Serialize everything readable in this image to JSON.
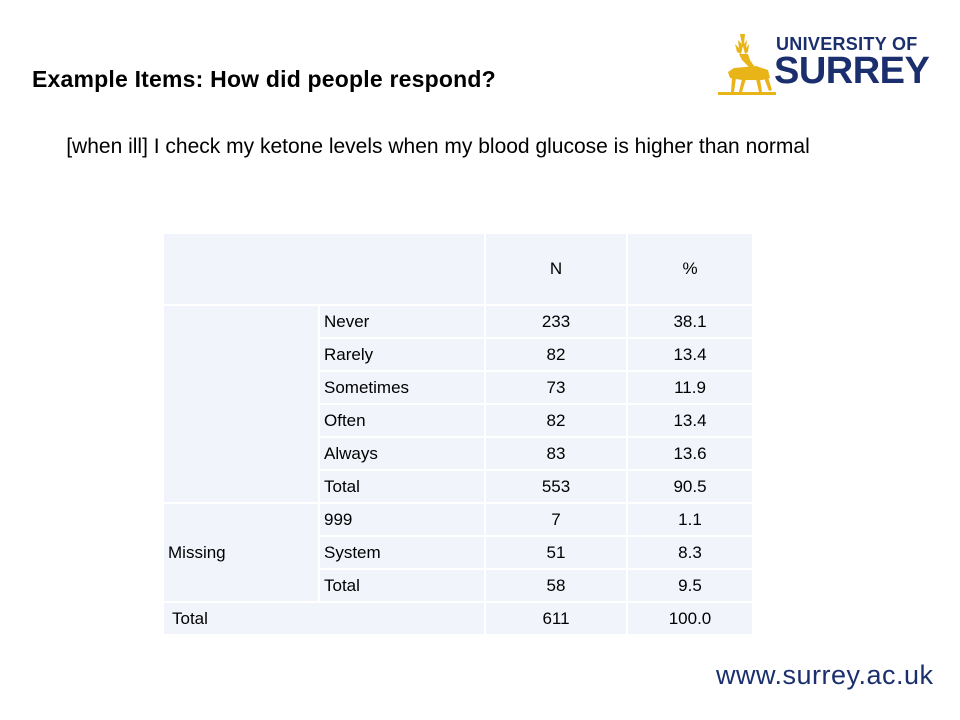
{
  "slide": {
    "title": "Example Items: How did people respond?",
    "question": "[when ill] I check my ketone levels when my blood glucose is higher than normal",
    "footer_url": "www.surrey.ac.uk"
  },
  "logo": {
    "line1": "UNIVERSITY OF",
    "line2": "SURREY",
    "stag_color": "#e8b418",
    "text_color": "#1b2f6e"
  },
  "table": {
    "headers": {
      "n": "N",
      "pct": "%"
    },
    "valid_rows": [
      {
        "label": "Never",
        "n": "233",
        "pct": "38.1"
      },
      {
        "label": "Rarely",
        "n": "82",
        "pct": "13.4"
      },
      {
        "label": "Sometimes",
        "n": "73",
        "pct": "11.9"
      },
      {
        "label": "Often",
        "n": "82",
        "pct": "13.4"
      },
      {
        "label": "Always",
        "n": "83",
        "pct": "13.6"
      },
      {
        "label": "Total",
        "n": "553",
        "pct": "90.5"
      }
    ],
    "missing_group_label": "Missing",
    "missing_rows": [
      {
        "label": "999",
        "n": "7",
        "pct": "1.1"
      },
      {
        "label": "System",
        "n": "51",
        "pct": "8.3"
      },
      {
        "label": "Total",
        "n": "58",
        "pct": "9.5"
      }
    ],
    "grand_total": {
      "label": "Total",
      "n": "611",
      "pct": "100.0"
    }
  },
  "colors": {
    "cell_background": "#f1f5fb",
    "brand_navy": "#1b2f6e"
  }
}
